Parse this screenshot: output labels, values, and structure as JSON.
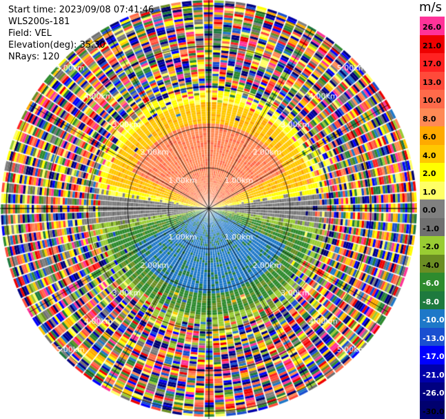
{
  "info": {
    "start_time": "Start time: 2023/09/08 07:41:46",
    "site": "WLS200s-181",
    "field": "Field: VEL",
    "elevation": "Elevation(deg): 35.30",
    "nrays": "NRays: 120"
  },
  "colorbar": {
    "unit": "m/s",
    "labels": [
      "26.0",
      "21.0",
      "17.0",
      "13.0",
      "10.0",
      "8.0",
      "6.0",
      "4.0",
      "2.0",
      "1.0",
      "0.0",
      "-1.0",
      "-2.0",
      "-4.0",
      "-6.0",
      "-8.0",
      "-10.0",
      "-13.0",
      "-17.0",
      "-21.0",
      "-26.0",
      "-30.0"
    ],
    "colors": [
      "#ff3399",
      "#ee0000",
      "#ff2222",
      "#ff4a3a",
      "#ff6a4a",
      "#ff8a55",
      "#ffaa00",
      "#ffc800",
      "#ffff00",
      "#ffff66",
      "#808080",
      "#707070",
      "#99cc33",
      "#6b8e23",
      "#2e8b2e",
      "#1e7a3e",
      "#1e78c8",
      "#1a4fd0",
      "#0000ff",
      "#0000aa",
      "#000080",
      "#00006e"
    ]
  },
  "range_labels": [
    "1.00km",
    "2.00km",
    "3.00km",
    "4.00km",
    "5.00km"
  ]
}
